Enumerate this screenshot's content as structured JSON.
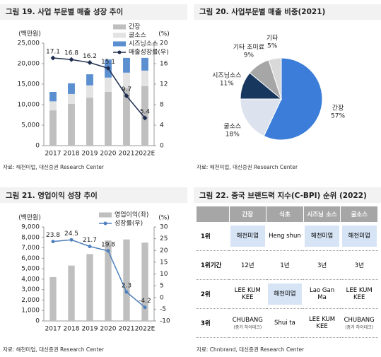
{
  "chart_data": [
    {
      "type": "bar",
      "title": "그림 19. 사업 부문별 매출 성장 추이",
      "stacked": true,
      "categories": [
        "2017",
        "2018",
        "2019",
        "2020",
        "2021",
        "2022E"
      ],
      "series": [
        {
          "name": "간장",
          "color": "#bfbfbf",
          "values": [
            8600,
            10200,
            11700,
            13100,
            14100,
            14500
          ]
        },
        {
          "name": "굴소스",
          "color": "#e3e3e3",
          "values": [
            2200,
            2400,
            3000,
            3500,
            3700,
            3800
          ]
        },
        {
          "name": "시즈닝소스",
          "color": "#5b8fd0",
          "values": [
            2300,
            2600,
            2700,
            4400,
            3600,
            3100
          ]
        },
        {
          "name": "매출성장률(우)",
          "type": "line",
          "axis": "y2",
          "marker": "diamond",
          "color": "#1f2d4f",
          "values": [
            17.1,
            16.8,
            16.2,
            15.1,
            9.7,
            5.4
          ]
        }
      ],
      "ylim": [
        0,
        25000
      ],
      "yticks": [
        0,
        {
          "value": 5000,
          "label": "5,000"
        },
        {
          "value": 10000,
          "label": "10,000"
        },
        {
          "value": 15000,
          "label": "15,000"
        },
        {
          "value": 20000,
          "label": "20,000"
        },
        {
          "value": 25000,
          "label": "25,000"
        }
      ],
      "y2lim": [
        0,
        20
      ],
      "y2ticks": [
        0,
        4,
        8,
        12,
        16,
        20
      ],
      "y_unit": "(백만원)",
      "y2_unit": "(%)",
      "legend": "upper right",
      "source": "자료: 해천미업, 대신증권 Research Center"
    },
    {
      "type": "pie",
      "title": "그림 20. 사업부문별 매출 비중(2021)",
      "categories": [
        "간장",
        "굴소스",
        "시즈닝소스",
        "기타 조미료",
        "기타"
      ],
      "values": [
        57,
        18,
        11,
        9,
        5
      ],
      "value_labels": [
        "57%",
        "18%",
        "11%",
        "9%",
        "5%"
      ],
      "colors": [
        "#3b7dd8",
        "#dce3ee",
        "#17375e",
        "#a6a6a6",
        "#d9d9d9"
      ],
      "source": "자료: 해천미업, 대신증권 Research Center"
    },
    {
      "type": "bar",
      "title": "그림 21. 영업이익 성장 추이",
      "stacked": false,
      "categories": [
        "2017",
        "2018",
        "2019",
        "2020",
        "2021",
        "2022E"
      ],
      "series": [
        {
          "name": "영업이익(좌)",
          "color": "#bfbfbf",
          "values": [
            4200,
            5300,
            6400,
            7700,
            7800,
            7500
          ]
        },
        {
          "name": "성장률(우)",
          "type": "line",
          "axis": "y2",
          "marker": "circle",
          "color": "#4f81bd",
          "values": [
            23.8,
            24.5,
            21.7,
            19.8,
            2.3,
            -4.2
          ]
        }
      ],
      "ylim": [
        0,
        9000
      ],
      "yticks": [
        0,
        {
          "value": 1000,
          "label": "1,000"
        },
        {
          "value": 2000,
          "label": "2,000"
        },
        {
          "value": 3000,
          "label": "3,000"
        },
        {
          "value": 4000,
          "label": "4,000"
        },
        {
          "value": 5000,
          "label": "5,000"
        },
        {
          "value": 6000,
          "label": "6,000"
        },
        {
          "value": 7000,
          "label": "7,000"
        },
        {
          "value": 8000,
          "label": "8,000"
        },
        {
          "value": 9000,
          "label": "9,000"
        }
      ],
      "y2lim": [
        -10,
        30
      ],
      "y2ticks": [
        -10,
        -5,
        0,
        5,
        10,
        15,
        20,
        25,
        30
      ],
      "y_unit": "(백만원)",
      "y2_unit": "(%)",
      "legend": "upper right",
      "source": "자료: 해천미업, 대신증권 Research Center"
    }
  ],
  "table": {
    "title": "그림 22. 중국 브랜드력 지수(C-BPI) 순위 (2022)",
    "header": [
      "간장",
      "식초",
      "시즈닝 소스",
      "굴소스"
    ],
    "rows": [
      [
        "1위",
        "해천미업",
        "Heng shun",
        "해천미업",
        "해천미업"
      ],
      [
        "1위기간",
        "12년",
        "1년",
        "3년",
        "3년"
      ],
      [
        "2위",
        "LEE KUM KEE",
        "해천미업",
        "Lao Gan Ma",
        "LEE KUM KEE"
      ],
      [
        "3위",
        {
          "text": "CHUBANG",
          "note": "(중거 하이테크)"
        },
        "Shui ta",
        "LEE KUM KEE",
        {
          "text": "CHUBANG",
          "note": "(중거 하이테크)"
        }
      ]
    ],
    "source": "자료: Chnbrand, 대신증권 Research Center"
  }
}
